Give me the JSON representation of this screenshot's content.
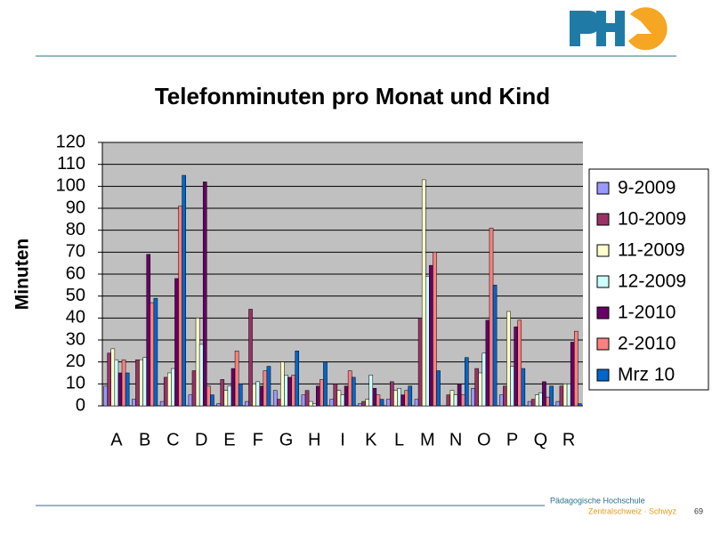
{
  "chart_data": {
    "type": "bar",
    "title": "Telefonminuten pro Monat und Kind",
    "y_label": "Minuten",
    "categories": [
      "A",
      "B",
      "C",
      "D",
      "E",
      "F",
      "G",
      "H",
      "I",
      "K",
      "L",
      "M",
      "N",
      "O",
      "P",
      "Q",
      "R"
    ],
    "series": [
      {
        "name": "9-2009",
        "color": "#9999ff",
        "values": [
          9,
          3,
          2,
          5,
          1,
          2,
          7,
          5,
          3,
          1,
          3,
          3,
          0,
          8,
          5,
          2,
          2
        ]
      },
      {
        "name": "10-2009",
        "color": "#993366",
        "values": [
          24,
          21,
          13,
          16,
          12,
          44,
          3,
          7,
          10,
          2,
          11,
          40,
          5,
          17,
          9,
          3,
          9
        ]
      },
      {
        "name": "11-2009",
        "color": "#ffffcc",
        "values": [
          26,
          21,
          15,
          40,
          7,
          10,
          20,
          2,
          7,
          3,
          7,
          103,
          7,
          15,
          43,
          5,
          10
        ]
      },
      {
        "name": "12-2009",
        "color": "#ccffff",
        "values": [
          21,
          22,
          17,
          28,
          9,
          11,
          14,
          1,
          5,
          14,
          8,
          59,
          5,
          24,
          18,
          6,
          10
        ]
      },
      {
        "name": "1-2010",
        "color": "#660066",
        "values": [
          15,
          69,
          58,
          102,
          17,
          9,
          13,
          9,
          9,
          8,
          5,
          64,
          10,
          39,
          36,
          11,
          29
        ]
      },
      {
        "name": "2-2010",
        "color": "#ff8080",
        "values": [
          21,
          47,
          91,
          9,
          25,
          16,
          14,
          12,
          16,
          5,
          7,
          70,
          5,
          81,
          39,
          4,
          34
        ]
      },
      {
        "name": "Mrz 10",
        "color": "#0066cc",
        "values": [
          15,
          49,
          105,
          5,
          10,
          18,
          25,
          20,
          13,
          3,
          9,
          16,
          22,
          55,
          17,
          9,
          1
        ]
      }
    ],
    "ylim": [
      0,
      120
    ],
    "yticks": [
      0,
      10,
      20,
      30,
      40,
      50,
      60,
      70,
      80,
      90,
      100,
      110,
      120
    ],
    "grid": true,
    "legend": "right"
  },
  "footer": {
    "line1": "Pädagogische Hochschule",
    "line2": "Zentralschweiz · Schwyz",
    "page": "69"
  }
}
